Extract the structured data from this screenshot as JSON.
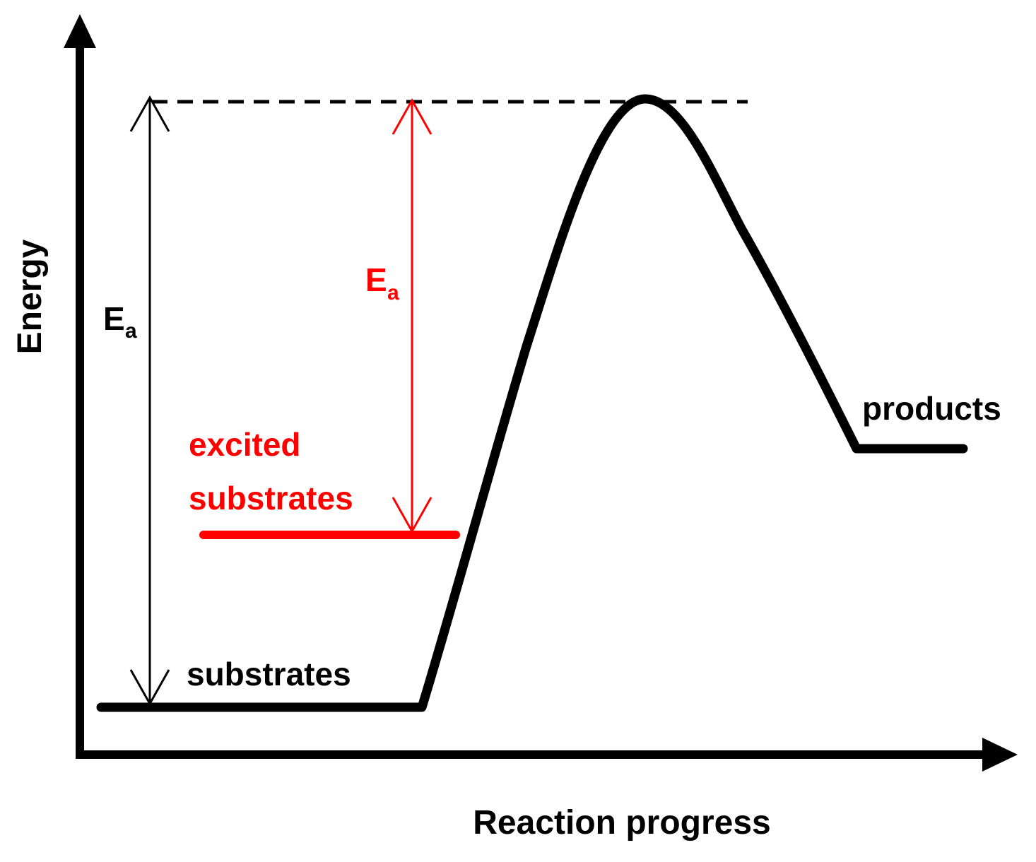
{
  "axes": {
    "y_label": "Energy",
    "x_label": "Reaction progress"
  },
  "labels": {
    "substrates": "substrates",
    "products": "products",
    "excited_line1": "excited",
    "excited_line2": "substrates",
    "ea_symbol": "E",
    "ea_subscript": "a"
  },
  "colors": {
    "main": "#000000",
    "excited": "#ff0000"
  },
  "icons": {
    "axis_arrow": "filled-triangle-arrowhead",
    "ea_arrow": "open-v-arrowhead"
  }
}
